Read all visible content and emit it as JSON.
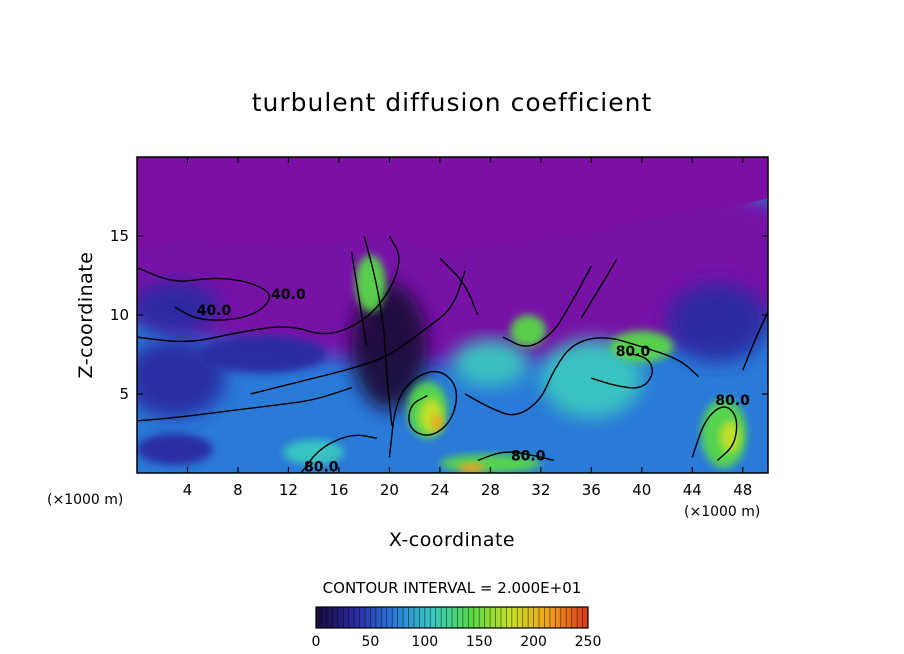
{
  "chart_data": {
    "type": "heatmap",
    "title": "turbulent diffusion coefficient",
    "xlabel": "X-coordinate",
    "ylabel": "Z-coordinate",
    "x_unit": "(×1000 m)",
    "y_unit": "(×1000 m)",
    "xlim": [
      0,
      50
    ],
    "ylim": [
      0,
      20
    ],
    "x_ticks": [
      4,
      8,
      12,
      16,
      20,
      24,
      28,
      32,
      36,
      40,
      44,
      48
    ],
    "y_ticks": [
      5,
      10,
      15
    ],
    "contour_interval_label": "CONTOUR INTERVAL = 2.000E+01",
    "contour_labels": [
      {
        "text": "40.0",
        "x": 6.1,
        "z": 10.0
      },
      {
        "text": "80.0",
        "x": 39.3,
        "z": 7.4
      },
      {
        "text": "80.0",
        "x": 14.6,
        "z": 0.1
      },
      {
        "text": "80.0",
        "x": 31.0,
        "z": 0.8
      },
      {
        "text": "40.0",
        "x": 12.0,
        "z": 11.0
      },
      {
        "text": "80.0",
        "x": 47.2,
        "z": 4.3
      }
    ],
    "colorbar": {
      "min": 0,
      "max": 250,
      "ticks": [
        0,
        50,
        100,
        150,
        200,
        250
      ],
      "colors": [
        "#1a0a3a",
        "#2a2aa0",
        "#2a7ad8",
        "#3ac8c0",
        "#58d848",
        "#c8e028",
        "#f0a020",
        "#d83818"
      ]
    },
    "field_colors": {
      "upper_layer": "#7c10a4",
      "background_blue": "#2a7ad8"
    }
  }
}
